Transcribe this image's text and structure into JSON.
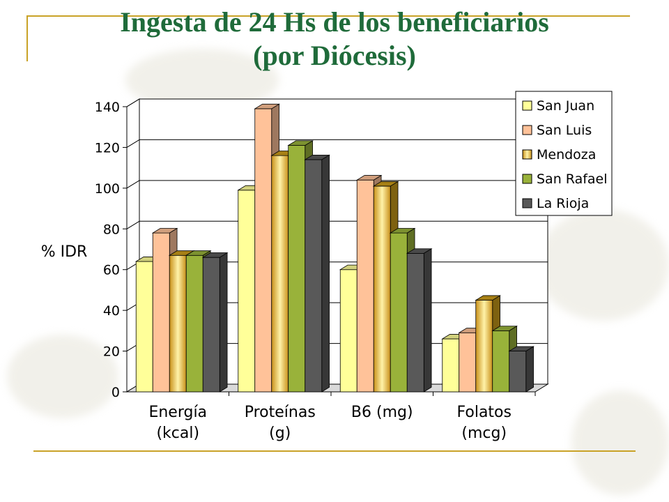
{
  "title": [
    "Ingesta de 24 Hs de los beneficiarios",
    "(por Diócesis)"
  ],
  "chart_data": {
    "type": "bar",
    "categories": [
      [
        "Energía",
        "(kcal)"
      ],
      [
        "Proteínas",
        "(g)"
      ],
      [
        "B6 (mg)"
      ],
      [
        "Folatos",
        "(mcg)"
      ]
    ],
    "ylabel": "% IDR",
    "ylim": [
      0,
      140
    ],
    "yticks": [
      0,
      20,
      40,
      60,
      80,
      100,
      120,
      140
    ],
    "grid": true,
    "legend_position": "top-right",
    "series": [
      {
        "name": "San Juan",
        "color": "#ffff99",
        "values": [
          64,
          99,
          60,
          26
        ]
      },
      {
        "name": "San Luis",
        "color": "#ffc299",
        "values": [
          78,
          139,
          104,
          29
        ]
      },
      {
        "name": "Mendoza",
        "color": "#cc9c1a",
        "values": [
          67,
          116,
          101,
          45
        ]
      },
      {
        "name": "San Rafael",
        "color": "#99b23a",
        "values": [
          67,
          121,
          78,
          30
        ]
      },
      {
        "name": "La Rioja",
        "color": "#595959",
        "values": [
          66,
          114,
          68,
          20
        ]
      }
    ]
  }
}
